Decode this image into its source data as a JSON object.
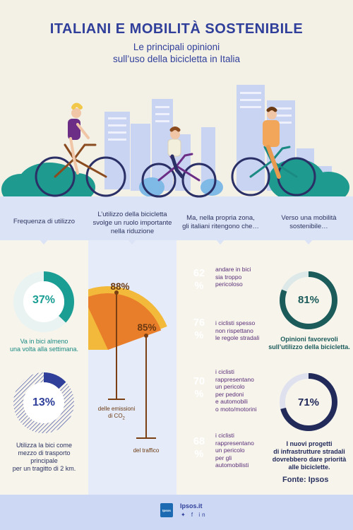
{
  "title": "ITALIANI E MOBILITÀ SOSTENIBILE",
  "subtitle_line1": "Le principali opinioni",
  "subtitle_line2": "sull’uso della bicicletta in Italia",
  "columns": [
    {
      "title_line1": "Frequenza di utilizzo",
      "title_line2": "",
      "title_line3": ""
    },
    {
      "title_line1": "L’utilizzo della bicicletta",
      "title_line2": "svolge un ruolo importante",
      "title_line3": "nella riduzione"
    },
    {
      "title_line1": "Ma, nella propria zona,",
      "title_line2": "gli italiani ritengono che…",
      "title_line3": ""
    },
    {
      "title_line1": "Verso una mobilità",
      "title_line2": "sostenibile…",
      "title_line3": ""
    }
  ],
  "frequency": [
    {
      "value": "37%",
      "fraction": 0.37,
      "line1": "Va in bici almeno",
      "line2": "una volta alla settimana.",
      "line3": ""
    },
    {
      "value": "13%",
      "fraction": 0.13,
      "line1": "Utilizza la bici come",
      "line2": "mezzo di trasporto principale",
      "line3": "per un tragitto di 2 km."
    }
  ],
  "reduction": [
    {
      "value": "88%",
      "fraction": 0.88,
      "label_line1": "delle emissioni",
      "label_line2": "di CO",
      "label_sub": "2"
    },
    {
      "value": "85%",
      "fraction": 0.85,
      "label_line1": "del traffico",
      "label_line2": "",
      "label_sub": ""
    }
  ],
  "opinions": [
    {
      "num": "62",
      "pct": "%",
      "color": "#6b2d85",
      "lines": [
        "andare in bici",
        "sia troppo",
        "pericoloso"
      ]
    },
    {
      "num": "76",
      "pct": "%",
      "color": "#8a4aa3",
      "lines": [
        "i ciclisti spesso",
        "non rispettano",
        "le regole stradali"
      ]
    },
    {
      "num": "70",
      "pct": "%",
      "color": "#b98bce",
      "lines": [
        "i ciclisti",
        "rappresentano",
        "un pericolo",
        "per pedoni",
        "e automobili",
        "o moto/motorini"
      ]
    },
    {
      "num": "68",
      "pct": "%",
      "color": "#e6d1ee",
      "lines": [
        "i ciclisti",
        "rappresentano",
        "un pericolo",
        "per gli",
        "automobilisti"
      ]
    }
  ],
  "future": [
    {
      "value": "81%",
      "fraction": 0.81,
      "color": "#1b5b5a",
      "line1": "Opinioni favorevoli",
      "line2": "sull’utilizzo della bicicletta.",
      "line3": ""
    },
    {
      "value": "71%",
      "fraction": 0.71,
      "color": "#222a5a",
      "line1": "I nuovi progetti",
      "line2": "di infrastrutture stradali",
      "line3": "dovrebbero dare priorità",
      "line4": "alle biciclette."
    }
  ],
  "source": "Fonte: Ipsos",
  "footer": {
    "logo_text": "Ipsos",
    "site": "Ipsos.it",
    "social": "✦ f in"
  },
  "colors": {
    "navy": "#2f3f9a",
    "teal": "#1a9e93",
    "blue_hatch": "#2f3f9a",
    "yellow": "#f2b93b",
    "orange": "#e87d2a"
  }
}
